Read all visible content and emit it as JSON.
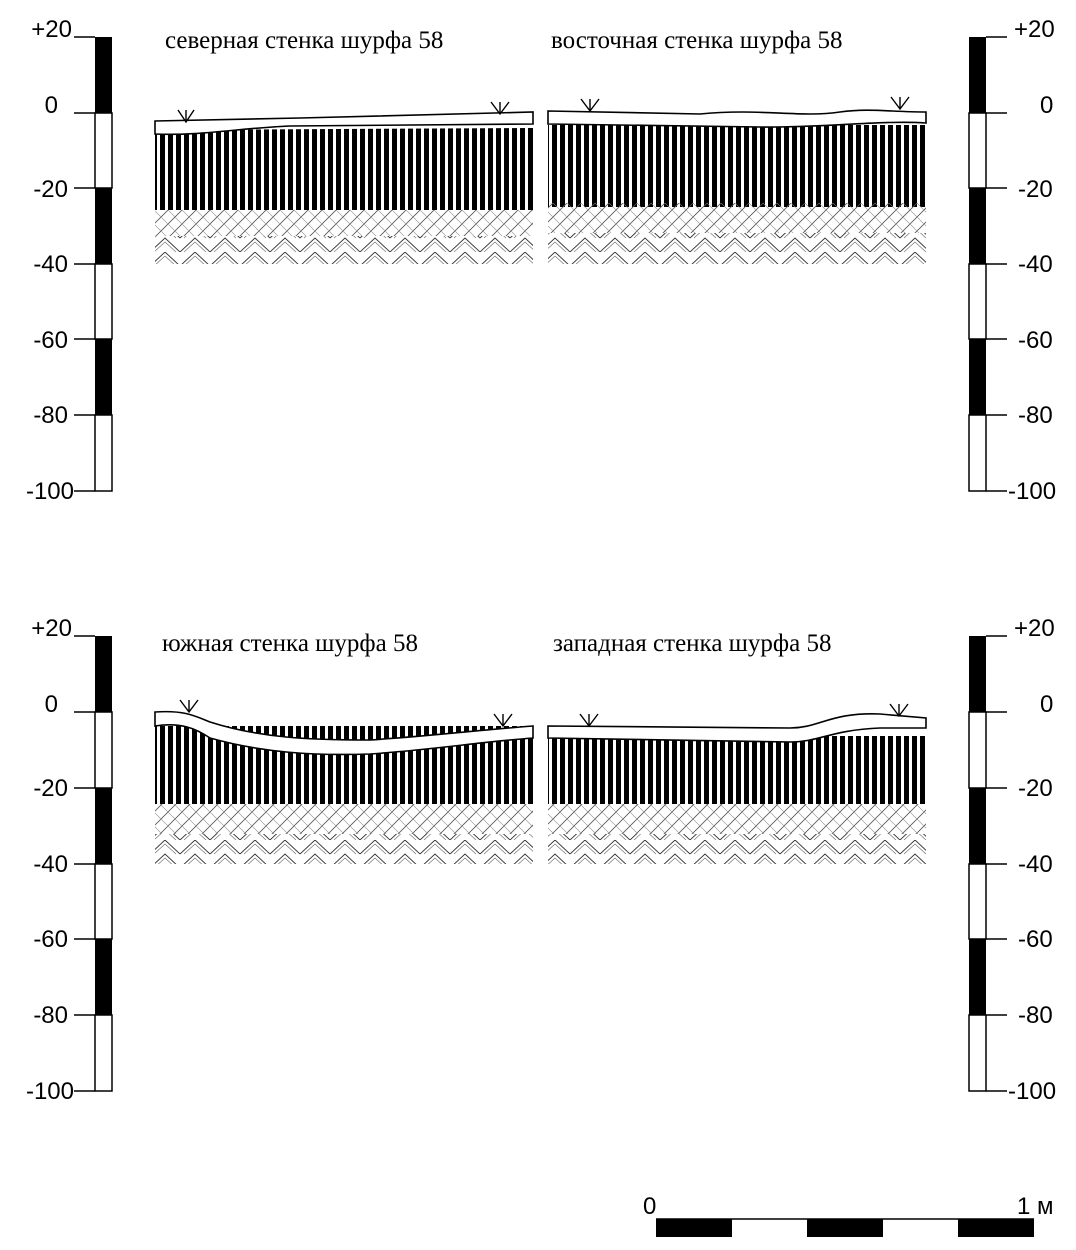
{
  "walls": [
    {
      "id": "north",
      "title": "северная стенка шурфа 58"
    },
    {
      "id": "east",
      "title": "восточная стенка шурфа 58"
    },
    {
      "id": "south",
      "title": "южная стенка шурфа 58"
    },
    {
      "id": "west",
      "title": "западная стенка шурфа 58"
    }
  ],
  "depth_scale": {
    "ticks": [
      "+20",
      "0",
      "-20",
      "-40",
      "-60",
      "-80",
      "-100"
    ],
    "values": [
      20,
      0,
      -20,
      -40,
      -60,
      -80,
      -100
    ],
    "black_segments": [
      [
        20,
        0
      ],
      [
        -20,
        -40
      ],
      [
        -60,
        -80
      ]
    ]
  },
  "bar_scale": {
    "start_label": "0",
    "end_label": "1 м",
    "segments": 5
  },
  "legend": {
    "layers": [
      "sod/topsoil with roots",
      "vertical hatched layer",
      "cross-hatched transition",
      "zigzag base"
    ]
  }
}
